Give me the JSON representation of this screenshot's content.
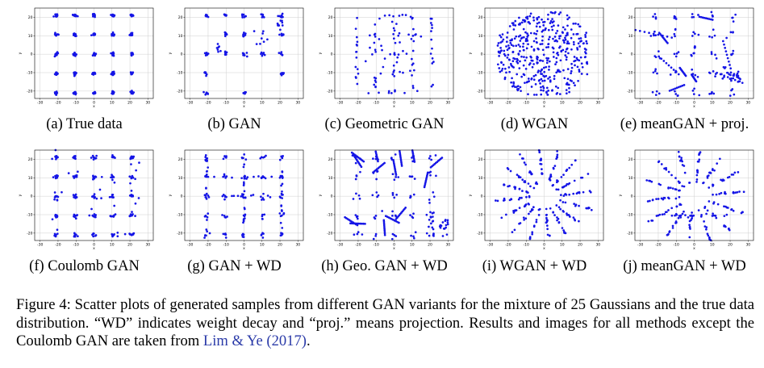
{
  "figure": {
    "label": "Figure 4:",
    "caption_text": "Scatter plots of generated samples from different GAN variants for the mixture of 25 Gaussians and the true data distribution. “WD” indicates weight decay and “proj.” means projection. Results and images for all methods except the Coulomb GAN are taken from",
    "citation": "Lim & Ye",
    "citation_year": "(2017)",
    "caption_end": "."
  },
  "colors": {
    "points": "#1515e6",
    "grid": "#cfcfcf",
    "axes": "#000000"
  },
  "chart_data": [
    {
      "type": "scatter",
      "caption": "(a) True data",
      "pattern": "true",
      "xlabel": "x",
      "ylabel": "y",
      "xlim": [
        -33,
        33
      ],
      "ylim": [
        -24,
        25
      ],
      "xticks": [
        "-30",
        "-20",
        "-10",
        "0",
        "10",
        "20",
        "30"
      ],
      "yticks": [
        "-20",
        "-10",
        "0",
        "10",
        "20"
      ],
      "grid": true
    },
    {
      "type": "scatter",
      "caption": "(b) GAN",
      "pattern": "gan",
      "xlabel": "x",
      "ylabel": "y",
      "xlim": [
        -33,
        33
      ],
      "ylim": [
        -24,
        25
      ],
      "xticks": [
        "-30",
        "-20",
        "-10",
        "0",
        "10",
        "20",
        "30"
      ],
      "yticks": [
        "-20",
        "-10",
        "0",
        "10",
        "20"
      ],
      "grid": true
    },
    {
      "type": "scatter",
      "caption": "(c) Geometric GAN",
      "pattern": "geo",
      "xlabel": "x",
      "ylabel": "y",
      "xlim": [
        -33,
        33
      ],
      "ylim": [
        -24,
        25
      ],
      "xticks": [
        "-30",
        "-20",
        "-10",
        "0",
        "10",
        "20",
        "30"
      ],
      "yticks": [
        "-20",
        "-10",
        "0",
        "10",
        "20"
      ],
      "grid": true
    },
    {
      "type": "scatter",
      "caption": "(d) WGAN",
      "pattern": "wgan",
      "xlabel": "x",
      "ylabel": "y",
      "xlim": [
        -33,
        33
      ],
      "ylim": [
        -24,
        25
      ],
      "xticks": [
        "-30",
        "-20",
        "-10",
        "0",
        "10",
        "20",
        "30"
      ],
      "yticks": [
        "-20",
        "-10",
        "0",
        "10",
        "20"
      ],
      "grid": true
    },
    {
      "type": "scatter",
      "caption": "(e) meanGAN + proj.",
      "pattern": "meanproj",
      "xlabel": "x",
      "ylabel": "y",
      "xlim": [
        -33,
        33
      ],
      "ylim": [
        -24,
        25
      ],
      "xticks": [
        "-30",
        "-20",
        "-10",
        "0",
        "10",
        "20",
        "30"
      ],
      "yticks": [
        "-20",
        "-10",
        "0",
        "10",
        "20"
      ],
      "grid": true
    },
    {
      "type": "scatter",
      "caption": "(f) Coulomb GAN",
      "pattern": "coulomb",
      "xlabel": "x",
      "ylabel": "y",
      "xlim": [
        -33,
        33
      ],
      "ylim": [
        -24,
        25
      ],
      "xticks": [
        "-30",
        "-20",
        "-10",
        "0",
        "10",
        "20",
        "30"
      ],
      "yticks": [
        "-20",
        "-10",
        "0",
        "10",
        "20"
      ],
      "grid": true
    },
    {
      "type": "scatter",
      "caption": "(g) GAN + WD",
      "pattern": "ganwd",
      "xlabel": "x",
      "ylabel": "y",
      "xlim": [
        -33,
        33
      ],
      "ylim": [
        -24,
        25
      ],
      "xticks": [
        "-30",
        "-20",
        "-10",
        "0",
        "10",
        "20",
        "30"
      ],
      "yticks": [
        "-20",
        "-10",
        "0",
        "10",
        "20"
      ],
      "grid": true
    },
    {
      "type": "scatter",
      "caption": "(h) Geo. GAN + WD",
      "pattern": "geowd",
      "xlabel": "x",
      "ylabel": "y",
      "xlim": [
        -33,
        33
      ],
      "ylim": [
        -24,
        25
      ],
      "xticks": [
        "-30",
        "-20",
        "-10",
        "0",
        "10",
        "20",
        "30"
      ],
      "yticks": [
        "-20",
        "-10",
        "0",
        "10",
        "20"
      ],
      "grid": true
    },
    {
      "type": "scatter",
      "caption": "(i) WGAN + WD",
      "pattern": "wganwd",
      "xlabel": "x",
      "ylabel": "y",
      "xlim": [
        -33,
        33
      ],
      "ylim": [
        -24,
        25
      ],
      "xticks": [
        "-30",
        "-20",
        "-10",
        "0",
        "10",
        "20",
        "30"
      ],
      "yticks": [
        "-20",
        "-10",
        "0",
        "10",
        "20"
      ],
      "grid": true
    },
    {
      "type": "scatter",
      "caption": "(j) meanGAN + WD",
      "pattern": "meanwd",
      "xlabel": "x",
      "ylabel": "y",
      "xlim": [
        -33,
        33
      ],
      "ylim": [
        -24,
        25
      ],
      "xticks": [
        "-30",
        "-20",
        "-10",
        "0",
        "10",
        "20",
        "30"
      ],
      "yticks": [
        "-20",
        "-10",
        "0",
        "10",
        "20"
      ],
      "grid": true
    }
  ]
}
